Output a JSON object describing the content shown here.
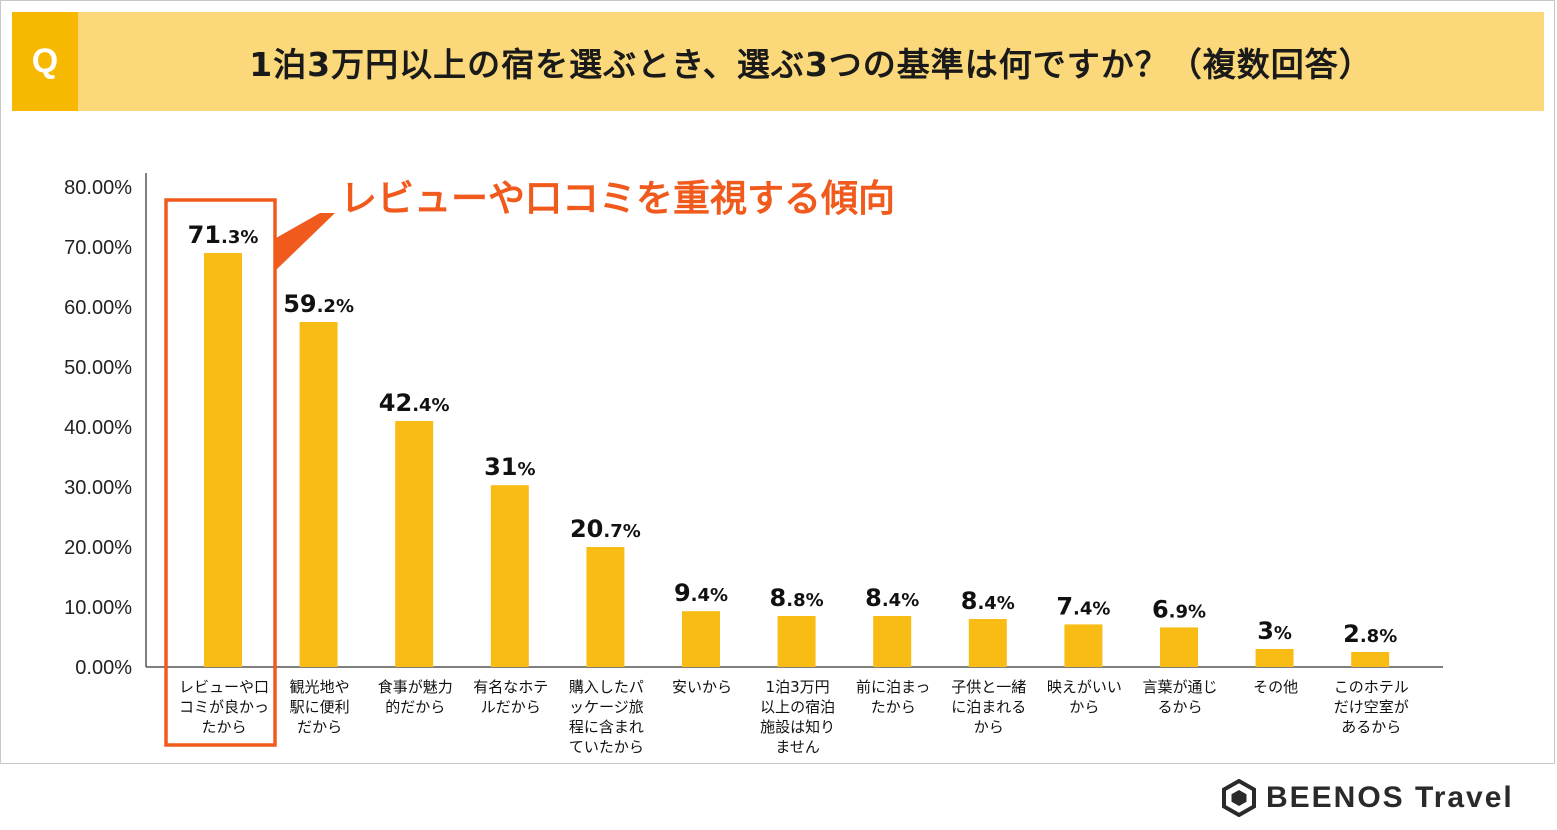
{
  "header": {
    "badge": "Q",
    "title": "1泊3万円以上の宿を選ぶとき、選ぶ3つの基準は何ですか？（複数回答）"
  },
  "annotation": "レビューや口コミを重視する傾向",
  "brand": "BEENOS Travel",
  "colors": {
    "bar": "#f9bc15",
    "highlight": "#f15a1d",
    "axis": "#555555",
    "header_bg": "#fbd97a",
    "badge_bg": "#f6b800"
  },
  "chart_data": {
    "type": "bar",
    "title": "1泊3万円以上の宿を選ぶとき、選ぶ3つの基準は何ですか？（複数回答）",
    "ylim": [
      0,
      80
    ],
    "yticks": [
      "0.00%",
      "10.00%",
      "20.00%",
      "30.00%",
      "40.00%",
      "50.00%",
      "60.00%",
      "70.00%",
      "80.00%"
    ],
    "highlight_index": 0,
    "categories": [
      [
        "レビューや口",
        "コミが良かっ",
        "たから"
      ],
      [
        "観光地や",
        "駅に便利",
        "だから"
      ],
      [
        "食事が魅力",
        "的だから"
      ],
      [
        "有名なホテ",
        "ルだから"
      ],
      [
        "購入したパ",
        "ッケージ旅",
        "程に含まれ",
        "ていたから"
      ],
      [
        "安いから"
      ],
      [
        "1泊3万円",
        "以上の宿泊",
        "施設は知り",
        "ません"
      ],
      [
        "前に泊まっ",
        "たから"
      ],
      [
        "子供と一緒",
        "に泊まれる",
        "から"
      ],
      [
        "映えがいい",
        "から"
      ],
      [
        "言葉が通じ",
        "るから"
      ],
      [
        "その他"
      ],
      [
        "このホテル",
        "だけ空室が",
        "あるから"
      ]
    ],
    "values": [
      71.3,
      59.2,
      42.4,
      31,
      20.7,
      9.4,
      8.8,
      8.4,
      8.4,
      7.4,
      6.9,
      3,
      2.8
    ],
    "bar_heights": [
      69,
      57.5,
      41,
      30.3,
      20,
      9.3,
      8.5,
      8.5,
      8,
      7.1,
      6.6,
      3,
      2.5
    ],
    "value_labels": [
      [
        "71",
        ".3%"
      ],
      [
        "59",
        ".2%"
      ],
      [
        "42",
        ".4%"
      ],
      [
        "31",
        "%"
      ],
      [
        "20",
        ".7%"
      ],
      [
        "9",
        ".4%"
      ],
      [
        "8",
        ".8%"
      ],
      [
        "8",
        ".4%"
      ],
      [
        "8",
        ".4%"
      ],
      [
        "7",
        ".4%"
      ],
      [
        "6",
        ".9%"
      ],
      [
        "3",
        "%"
      ],
      [
        "2",
        ".8%"
      ]
    ]
  }
}
